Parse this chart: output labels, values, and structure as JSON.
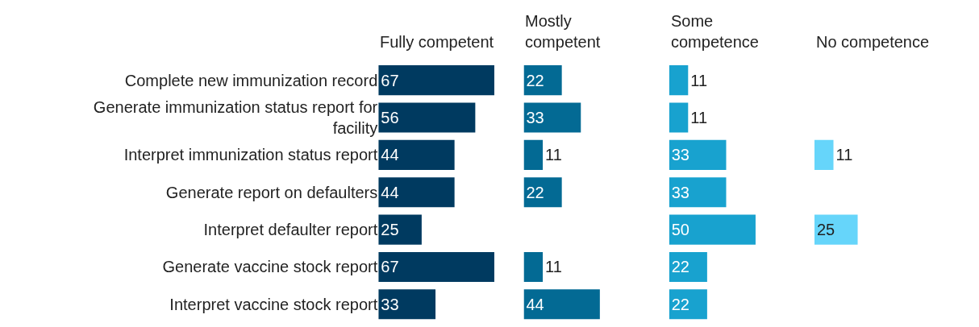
{
  "chart_data": [
    {
      "type": "bar",
      "orientation": "horizontal",
      "title": "Fully competent",
      "categories": [
        "Complete new immunization record",
        "Generate immunization status report for facility",
        "Interpret immunization status report",
        "Generate report on defaulters",
        "Interpret defaulter report",
        "Generate vaccine stock report",
        "Interpret vaccine stock report"
      ],
      "values": [
        67,
        56,
        44,
        44,
        25,
        67,
        33
      ],
      "color": "#003a60",
      "value_labels": [
        "67",
        "56",
        "44",
        "44",
        "25",
        "67",
        "33"
      ],
      "tick_labels": "y"
    },
    {
      "type": "bar",
      "orientation": "horizontal",
      "title": "Mostly competent",
      "categories": [
        null,
        null,
        null,
        null,
        null,
        null,
        null
      ],
      "values": [
        22,
        33,
        11,
        22,
        0,
        11,
        44
      ],
      "color": "#036a94",
      "value_labels": [
        "22",
        "33",
        "11",
        "22",
        null,
        "11",
        "44"
      ],
      "tick_labels": false
    },
    {
      "type": "bar",
      "orientation": "horizontal",
      "title": "Some competence",
      "categories": [
        null,
        null,
        null,
        null,
        null,
        null,
        null
      ],
      "values": [
        11,
        11,
        33,
        33,
        50,
        22,
        22
      ],
      "color": "#18a2cf",
      "value_labels": [
        "11",
        "11",
        "33",
        "33",
        "50",
        "22",
        "22"
      ],
      "tick_labels": false
    },
    {
      "type": "bar",
      "orientation": "horizontal",
      "title": "No competence",
      "categories": [
        null,
        null,
        null,
        null,
        null,
        null,
        null
      ],
      "values": [
        0,
        0,
        11,
        0,
        25,
        0,
        0
      ],
      "color": "#66d5fa",
      "value_labels": [
        null,
        null,
        "11",
        null,
        "25",
        null,
        null
      ],
      "tick_labels": false
    }
  ]
}
